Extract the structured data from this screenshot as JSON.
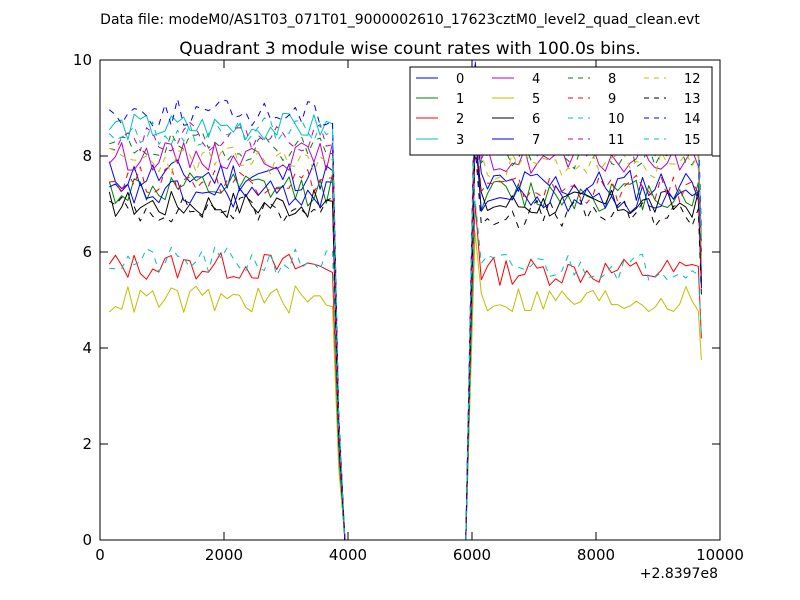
{
  "figure": {
    "suptitle": "Data file: modeM0/AS1T03_071T01_9000002610_17623cztM0_level2_quad_clean.evt"
  },
  "chart_data": {
    "type": "line",
    "title": "Quadrant 3 module wise count rates with 100.0s bins.",
    "xlabel": "",
    "ylabel": "",
    "x_offset_label": "+2.8397e8",
    "xlim": [
      0,
      10000
    ],
    "ylim": [
      0,
      10
    ],
    "x_ticks": [
      0,
      2000,
      4000,
      6000,
      8000,
      10000
    ],
    "y_ticks": [
      0,
      2,
      4,
      6,
      8,
      10
    ],
    "x_tick_labels": [
      "0",
      "2000",
      "4000",
      "6000",
      "8000",
      "10000"
    ],
    "y_tick_labels": [
      "0",
      "2",
      "4",
      "6",
      "8",
      "10"
    ],
    "grid": false,
    "legend_position": "top-right",
    "bin_seconds": 100,
    "segments": [
      {
        "start": 150,
        "end": 3750,
        "drop_start": 3850,
        "drop_end": 3950
      },
      {
        "start": 5900,
        "end": 6050,
        "drop_start": 6050,
        "drop_end": 9650
      }
    ],
    "series": [
      {
        "name": "0",
        "color": "#0000ff",
        "dash": "solid",
        "level1": 7.6,
        "level2": 7.4,
        "noise": 0.35,
        "seed": 11
      },
      {
        "name": "1",
        "color": "#008000",
        "dash": "solid",
        "level1": 7.3,
        "level2": 7.2,
        "noise": 0.35,
        "seed": 12
      },
      {
        "name": "2",
        "color": "#ff0000",
        "dash": "solid",
        "level1": 5.7,
        "level2": 5.6,
        "noise": 0.3,
        "seed": 13
      },
      {
        "name": "3",
        "color": "#00bfbf",
        "dash": "solid",
        "level1": 8.6,
        "level2": 8.3,
        "noise": 0.3,
        "seed": 14
      },
      {
        "name": "4",
        "color": "#bf00bf",
        "dash": "solid",
        "level1": 8.0,
        "level2": 7.9,
        "noise": 0.3,
        "seed": 15
      },
      {
        "name": "5",
        "color": "#bfbf00",
        "dash": "solid",
        "level1": 5.0,
        "level2": 5.0,
        "noise": 0.3,
        "seed": 16
      },
      {
        "name": "6",
        "color": "#000000",
        "dash": "solid",
        "level1": 7.0,
        "level2": 7.0,
        "noise": 0.3,
        "seed": 17
      },
      {
        "name": "7",
        "color": "#0000ff",
        "dash": "solid",
        "level1": 7.2,
        "level2": 7.1,
        "noise": 0.3,
        "seed": 18
      },
      {
        "name": "8",
        "color": "#008000",
        "dash": "dashed",
        "level1": 8.2,
        "level2": 8.0,
        "noise": 0.3,
        "seed": 19
      },
      {
        "name": "9",
        "color": "#ff0000",
        "dash": "dashed",
        "level1": 7.5,
        "level2": 7.3,
        "noise": 0.3,
        "seed": 20
      },
      {
        "name": "10",
        "color": "#00bfbf",
        "dash": "dashed",
        "level1": 5.8,
        "level2": 5.7,
        "noise": 0.3,
        "seed": 21
      },
      {
        "name": "11",
        "color": "#bf00bf",
        "dash": "dashed",
        "level1": 8.4,
        "level2": 8.3,
        "noise": 0.3,
        "seed": 22
      },
      {
        "name": "12",
        "color": "#bfbf00",
        "dash": "dashed",
        "level1": 7.9,
        "level2": 7.8,
        "noise": 0.3,
        "seed": 23
      },
      {
        "name": "13",
        "color": "#000000",
        "dash": "dashed",
        "level1": 6.9,
        "level2": 6.8,
        "noise": 0.3,
        "seed": 24
      },
      {
        "name": "14",
        "color": "#0000ff",
        "dash": "dashed",
        "level1": 8.9,
        "level2": 8.6,
        "noise": 0.3,
        "seed": 25
      },
      {
        "name": "15",
        "color": "#00bfbf",
        "dash": "dashed",
        "level1": 8.5,
        "level2": 8.3,
        "noise": 0.3,
        "seed": 26
      }
    ]
  }
}
